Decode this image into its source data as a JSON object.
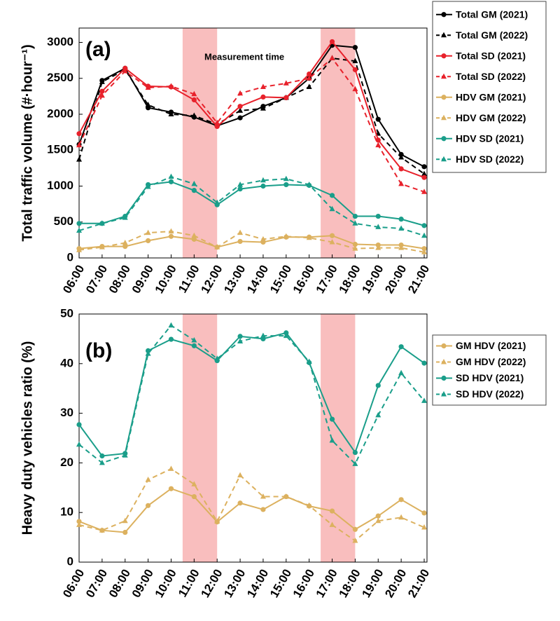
{
  "chart_data": [
    {
      "type": "line",
      "panel_label": "(a)",
      "annotation": "Measurement time",
      "ylabel": "Total traffic volume (#·hour⁻¹)",
      "categories": [
        "06:00",
        "07:00",
        "08:00",
        "09:00",
        "10:00",
        "11:00",
        "12:00",
        "13:00",
        "14:00",
        "15:00",
        "16:00",
        "17:00",
        "18:00",
        "19:00",
        "20:00",
        "21:00"
      ],
      "ylim": [
        0,
        3200
      ],
      "yticks": [
        0,
        500,
        1000,
        1500,
        2000,
        2500,
        3000
      ],
      "series": [
        {
          "name": "Total GM (2021)",
          "color": "#000000",
          "dashed": false,
          "marker": "circle",
          "values": [
            1580,
            2470,
            2640,
            2090,
            2030,
            1960,
            1840,
            1950,
            2110,
            2230,
            2500,
            2960,
            2930,
            1930,
            1440,
            1270
          ]
        },
        {
          "name": "Total GM (2022)",
          "color": "#000000",
          "dashed": true,
          "marker": "triangle",
          "values": [
            1370,
            2450,
            2620,
            2130,
            2000,
            1980,
            1860,
            2050,
            2080,
            2230,
            2380,
            2780,
            2740,
            1730,
            1400,
            1170
          ]
        },
        {
          "name": "Total SD (2021)",
          "color": "#e8212b",
          "dashed": false,
          "marker": "circle",
          "values": [
            1730,
            2320,
            2640,
            2390,
            2380,
            2200,
            1830,
            2110,
            2240,
            2230,
            2560,
            3010,
            2620,
            1640,
            1240,
            1120
          ]
        },
        {
          "name": "Total SD (2022)",
          "color": "#e8212b",
          "dashed": true,
          "marker": "triangle",
          "values": [
            1570,
            2260,
            2600,
            2370,
            2390,
            2280,
            1880,
            2290,
            2380,
            2430,
            2500,
            2780,
            2350,
            1570,
            1030,
            920
          ]
        },
        {
          "name": "HDV GM (2021)",
          "color": "#dcb15f",
          "dashed": false,
          "marker": "circle",
          "values": [
            130,
            160,
            160,
            240,
            300,
            260,
            150,
            230,
            220,
            290,
            290,
            310,
            190,
            180,
            180,
            130
          ]
        },
        {
          "name": "HDV GM (2022)",
          "color": "#dcb15f",
          "dashed": true,
          "marker": "triangle",
          "values": [
            110,
            150,
            210,
            350,
            370,
            310,
            150,
            350,
            260,
            300,
            280,
            220,
            130,
            140,
            140,
            80
          ]
        },
        {
          "name": "HDV SD (2021)",
          "color": "#1a9e8a",
          "dashed": false,
          "marker": "circle",
          "values": [
            480,
            480,
            580,
            1020,
            1060,
            940,
            740,
            960,
            1000,
            1020,
            1010,
            870,
            580,
            580,
            540,
            450
          ]
        },
        {
          "name": "HDV SD (2022)",
          "color": "#1a9e8a",
          "dashed": true,
          "marker": "triangle",
          "values": [
            380,
            480,
            560,
            990,
            1130,
            1030,
            770,
            1020,
            1080,
            1100,
            1020,
            680,
            480,
            430,
            410,
            310
          ]
        }
      ]
    },
    {
      "type": "line",
      "panel_label": "(b)",
      "ylabel": "Heavy duty vehicles ratio (%)",
      "categories": [
        "06:00",
        "07:00",
        "08:00",
        "09:00",
        "10:00",
        "11:00",
        "12:00",
        "13:00",
        "14:00",
        "15:00",
        "16:00",
        "17:00",
        "18:00",
        "19:00",
        "20:00",
        "21:00"
      ],
      "ylim": [
        0,
        50
      ],
      "yticks": [
        0,
        10,
        20,
        30,
        40,
        50
      ],
      "series": [
        {
          "name": "GM HDV (2021)",
          "color": "#dcb15f",
          "dashed": false,
          "marker": "circle",
          "values": [
            8.2,
            6.4,
            6,
            11.4,
            14.8,
            13.2,
            8.1,
            11.9,
            10.6,
            13.2,
            11.3,
            10.3,
            6.6,
            9.3,
            12.6,
            9.9
          ]
        },
        {
          "name": "GM HDV (2022)",
          "color": "#dcb15f",
          "dashed": true,
          "marker": "triangle",
          "values": [
            7.5,
            6.4,
            8.3,
            16.6,
            18.8,
            15.7,
            8.2,
            17.5,
            13.2,
            13.2,
            11.4,
            7.5,
            4.3,
            8.3,
            9,
            7
          ]
        },
        {
          "name": "SD HDV (2021)",
          "color": "#1a9e8a",
          "dashed": false,
          "marker": "circle",
          "values": [
            27.7,
            21.4,
            21.9,
            42.6,
            44.9,
            43.6,
            40.6,
            45.5,
            45,
            46.2,
            40.2,
            28.8,
            22.1,
            35.6,
            43.4,
            40.1
          ]
        },
        {
          "name": "SD HDV (2022)",
          "color": "#1a9e8a",
          "dashed": true,
          "marker": "triangle",
          "values": [
            23.7,
            20,
            21.5,
            42,
            47.7,
            44.7,
            41,
            44.5,
            45.6,
            45.6,
            40.4,
            24.5,
            19.8,
            29.6,
            38.1,
            32.5
          ]
        }
      ]
    }
  ]
}
